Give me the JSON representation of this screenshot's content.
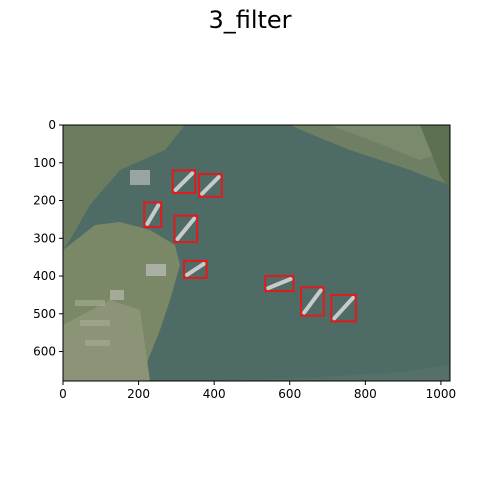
{
  "figure": {
    "title": "3_filter"
  },
  "axes": {
    "x_ticks": [
      "0",
      "200",
      "400",
      "600",
      "800",
      "1000"
    ],
    "x_tick_values": [
      0,
      200,
      400,
      600,
      800,
      1000
    ],
    "y_ticks": [
      "0",
      "100",
      "200",
      "300",
      "400",
      "500",
      "600"
    ],
    "y_tick_values": [
      0,
      100,
      200,
      300,
      400,
      500,
      600
    ],
    "xlim": [
      0,
      1024
    ],
    "ylim": [
      0,
      678
    ]
  },
  "image": {
    "description_colors": {
      "water": "#4b6a66",
      "land": "#7d8a70",
      "box": "#e31a1c"
    }
  },
  "detections": [
    {
      "label": "ship",
      "x": [
        290,
        350
      ],
      "y": [
        120,
        180
      ]
    },
    {
      "label": "ship",
      "x": [
        360,
        420
      ],
      "y": [
        130,
        190
      ]
    },
    {
      "label": "ship",
      "x": [
        215,
        260
      ],
      "y": [
        205,
        270
      ]
    },
    {
      "label": "ship",
      "x": [
        295,
        355
      ],
      "y": [
        240,
        310
      ]
    },
    {
      "label": "ship",
      "x": [
        320,
        380
      ],
      "y": [
        360,
        405
      ]
    },
    {
      "label": "ship",
      "x": [
        535,
        610
      ],
      "y": [
        400,
        440
      ]
    },
    {
      "label": "ship",
      "x": [
        630,
        690
      ],
      "y": [
        430,
        505
      ]
    },
    {
      "label": "ship",
      "x": [
        710,
        775
      ],
      "y": [
        450,
        520
      ]
    }
  ]
}
